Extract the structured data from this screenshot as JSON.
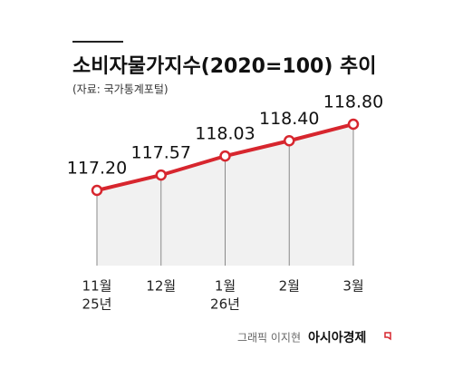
{
  "chart_data": {
    "type": "line",
    "title": "소비자물가지수(2020=100) 추이",
    "subtitle": "(자료: 국가통계포털)",
    "categories": [
      "11월",
      "12월",
      "1월",
      "2월",
      "3월"
    ],
    "year_labels": [
      "25년",
      null,
      "26년",
      null,
      null
    ],
    "values": [
      117.2,
      117.57,
      118.03,
      118.4,
      118.8
    ],
    "value_labels": [
      "117.20",
      "117.57",
      "118.03",
      "118.40",
      "118.80"
    ],
    "color": "#d7262e",
    "credit": "그래픽 이지현",
    "source_brand": "아시아경제"
  }
}
